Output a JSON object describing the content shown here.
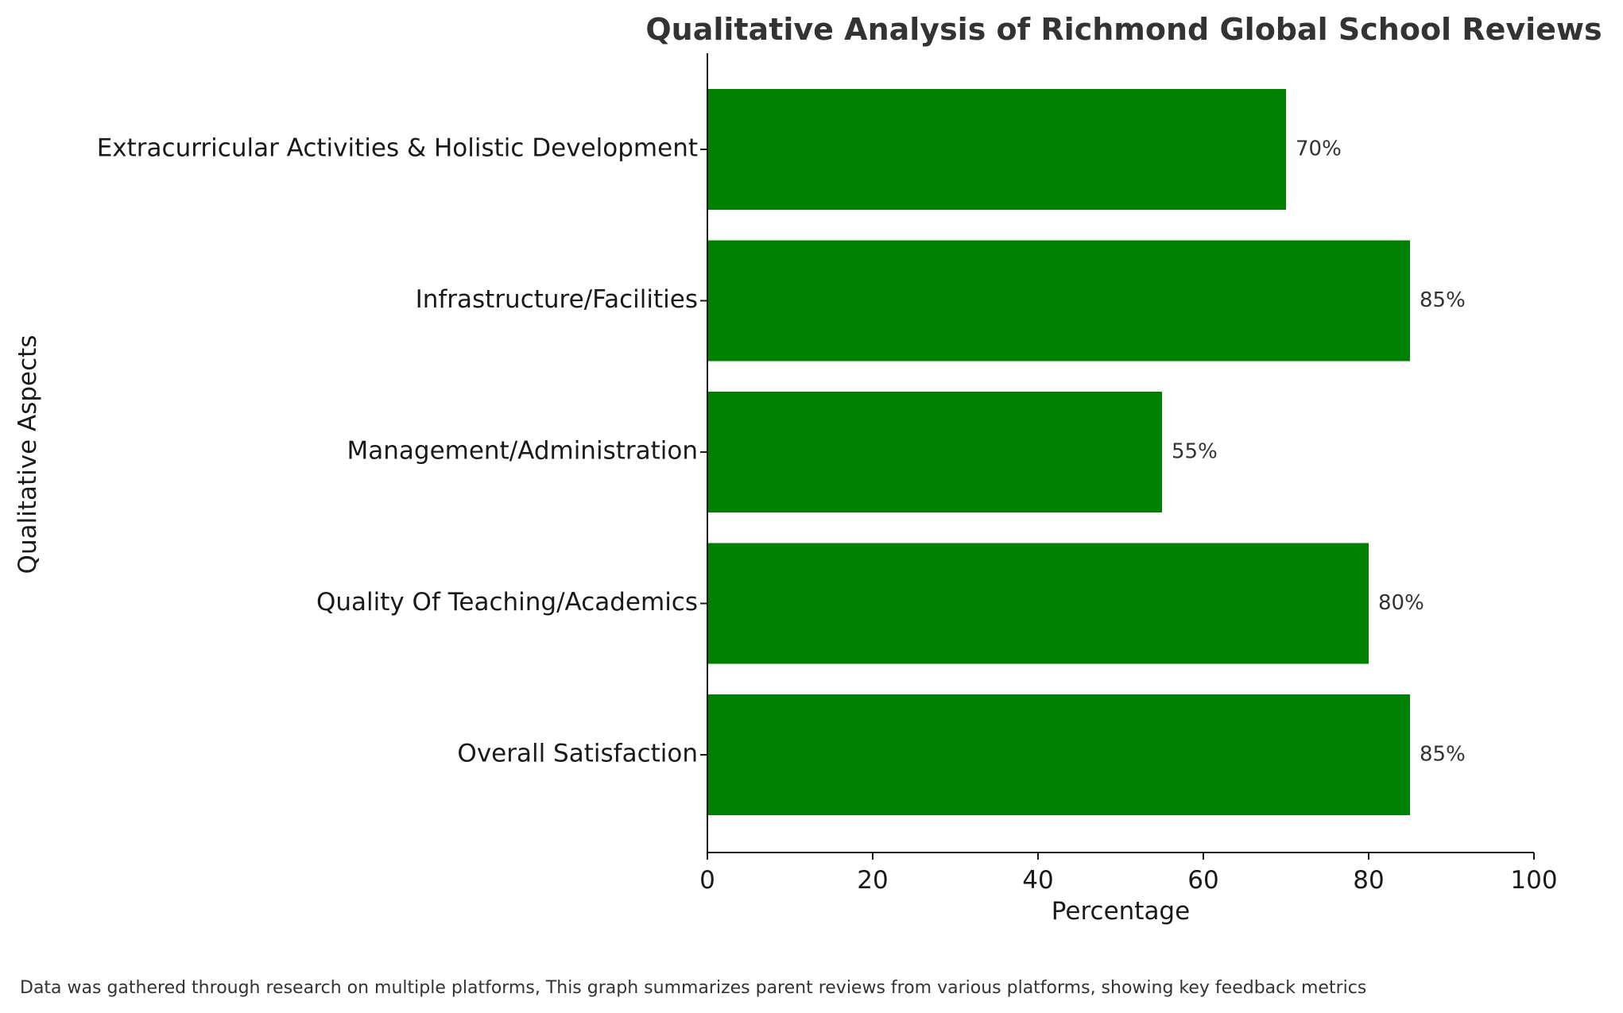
{
  "chart_data": {
    "type": "bar",
    "orientation": "horizontal",
    "title": "Qualitative Analysis of Richmond Global School Reviews",
    "xlabel": "Percentage",
    "ylabel": "Qualitative Aspects",
    "categories": [
      "Overall Satisfaction",
      "Quality Of Teaching/Academics",
      "Management/Administration",
      "Infrastructure/Facilities",
      "Extracurricular Activities & Holistic Development"
    ],
    "values": [
      85,
      80,
      55,
      85,
      70
    ],
    "value_labels": [
      "85%",
      "80%",
      "55%",
      "85%",
      "70%"
    ],
    "xlim": [
      0,
      100
    ],
    "xticks": [
      0,
      20,
      40,
      60,
      80,
      100
    ],
    "xtick_labels": [
      "0",
      "20",
      "40",
      "60",
      "80",
      "100"
    ],
    "bar_color": "#008000",
    "grid": false,
    "footnote": "Data was gathered through research on multiple platforms, This graph summarizes parent reviews from various platforms, showing key feedback metrics"
  }
}
